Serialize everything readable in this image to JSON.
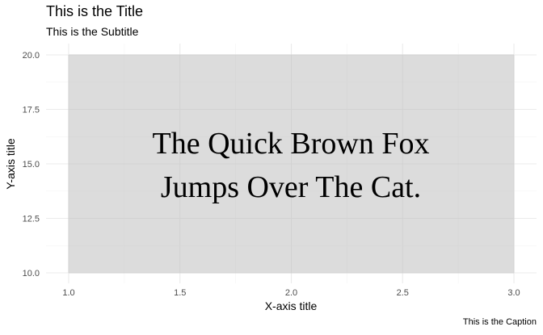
{
  "chart_data": {
    "type": "area",
    "title": "This is the Title",
    "subtitle": "This is the Subtitle",
    "caption": "This is the Caption",
    "xlabel": "X-axis title",
    "ylabel": "Y-axis title",
    "xlim": [
      1.0,
      3.0
    ],
    "ylim": [
      10.0,
      20.0
    ],
    "x_ticks": [
      "1.0",
      "1.5",
      "2.0",
      "2.5",
      "3.0"
    ],
    "x_tick_values": [
      1.0,
      1.5,
      2.0,
      2.5,
      3.0
    ],
    "y_ticks": [
      "10.0",
      "12.5",
      "15.0",
      "17.5",
      "20.0"
    ],
    "y_tick_values": [
      10.0,
      12.5,
      15.0,
      17.5,
      20.0
    ],
    "rect": {
      "xmin": 1.0,
      "xmax": 3.0,
      "ymin": 10.0,
      "ymax": 20.0,
      "fill": "#dcdcdc"
    },
    "annotation_lines": [
      "The Quick Brown Fox",
      "Jumps Over The Cat."
    ],
    "grid": true,
    "legend": "none"
  }
}
